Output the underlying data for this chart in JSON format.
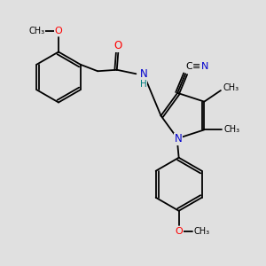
{
  "bg_color": "#e0e0e0",
  "bond_color": "#000000",
  "bond_lw": 1.3,
  "atom_colors": {
    "O": "#ff0000",
    "N": "#0000cd",
    "H": "#008080"
  },
  "figsize": [
    3.0,
    3.0
  ],
  "dpi": 100,
  "xlim": [
    0,
    10
  ],
  "ylim": [
    0,
    10
  ]
}
